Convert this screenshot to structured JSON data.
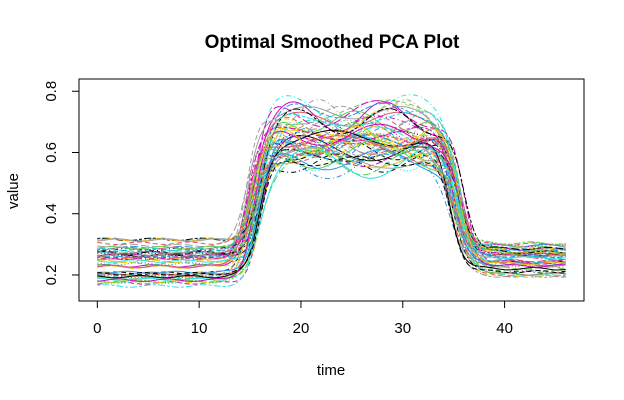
{
  "chart_data": {
    "type": "line",
    "title": "Optimal Smoothed PCA Plot",
    "xlabel": "time",
    "ylabel": "value",
    "xlim": [
      -1.8,
      47.8
    ],
    "ylim": [
      0.115,
      0.84
    ],
    "x_ticks": [
      0,
      10,
      20,
      30,
      40
    ],
    "y_ticks": [
      0.2,
      0.4,
      0.6,
      0.8
    ],
    "y_tick_labels": [
      "0.2",
      "0.4",
      "0.6",
      "0.8"
    ],
    "x": [
      0,
      12.5,
      13,
      14,
      16,
      18,
      20,
      22,
      25,
      28,
      31,
      33,
      34,
      35,
      36,
      37,
      40,
      46
    ],
    "profiles": {
      "low_mean": 0.24,
      "high_mean": 0.65,
      "end_mean": 0.25,
      "spread_low": 0.16,
      "spread_high": 0.18
    },
    "series_count": 60,
    "palette": [
      "#000000",
      "#DF536B",
      "#61D04F",
      "#2297E6",
      "#28E2E5",
      "#CD0BBC",
      "#F5C710",
      "#9E9E9E"
    ],
    "line_styles": [
      "solid",
      "dashed",
      "dotted",
      "dotdash",
      "longdash",
      "twodash"
    ],
    "grid": false,
    "legend": "none"
  }
}
